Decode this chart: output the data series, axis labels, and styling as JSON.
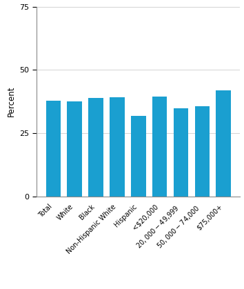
{
  "categories": [
    "Total",
    "White",
    "Black",
    "Non-Hispanic White",
    "Hispanic",
    "<$20,000",
    "$20,000-$49,999",
    "$50,000-$74,000",
    "$75,000+"
  ],
  "values": [
    37.8,
    37.7,
    38.9,
    39.3,
    31.8,
    39.4,
    34.9,
    35.6,
    42.0
  ],
  "bar_color": "#1a9fd0",
  "ylabel": "Percent",
  "ylim": [
    0,
    75
  ],
  "yticks": [
    0,
    25,
    50,
    75
  ],
  "background_color": "#ffffff",
  "bar_width": 0.7,
  "tick_label_fontsize": 7.0,
  "ylabel_fontsize": 8.5,
  "ytick_fontsize": 8.0
}
